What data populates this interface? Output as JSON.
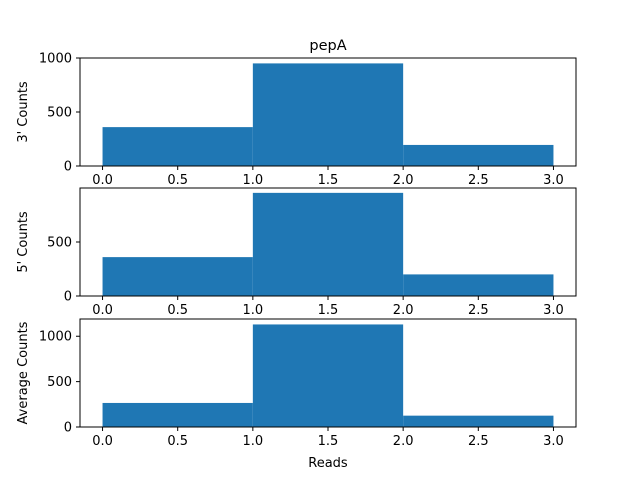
{
  "title": "pepA",
  "xlabel": "Reads",
  "colors": {
    "bar": "#1f77b4",
    "axes": "#000000",
    "background": "#ffffff"
  },
  "chart_data": [
    {
      "type": "bar",
      "title": "pepA",
      "ylabel": "3' Counts",
      "xlabel": "",
      "bins": [
        [
          0,
          1
        ],
        [
          1,
          2
        ],
        [
          2,
          3
        ]
      ],
      "values": [
        360,
        950,
        195
      ],
      "xlim": [
        -0.15,
        3.15
      ],
      "ylim": [
        0,
        1000
      ],
      "xticks": [
        0.0,
        0.5,
        1.0,
        1.5,
        2.0,
        2.5,
        3.0
      ],
      "xtick_labels": [
        "0.0",
        "0.5",
        "1.0",
        "1.5",
        "2.0",
        "2.5",
        "3.0"
      ],
      "yticks": [
        0,
        500,
        1000
      ],
      "ytick_labels": [
        "0",
        "500",
        "1000"
      ],
      "grid": false
    },
    {
      "type": "bar",
      "title": "",
      "ylabel": "5' Counts",
      "xlabel": "",
      "bins": [
        [
          0,
          1
        ],
        [
          1,
          2
        ],
        [
          2,
          3
        ]
      ],
      "values": [
        360,
        955,
        200
      ],
      "xlim": [
        -0.15,
        3.15
      ],
      "ylim": [
        0,
        1000
      ],
      "xticks": [
        0.0,
        0.5,
        1.0,
        1.5,
        2.0,
        2.5,
        3.0
      ],
      "xtick_labels": [
        "0.0",
        "0.5",
        "1.0",
        "1.5",
        "2.0",
        "2.5",
        "3.0"
      ],
      "yticks": [
        0,
        500
      ],
      "ytick_labels": [
        "0",
        "500"
      ],
      "grid": false
    },
    {
      "type": "bar",
      "title": "",
      "ylabel": "Average Counts",
      "xlabel": "Reads",
      "bins": [
        [
          0,
          1
        ],
        [
          1,
          2
        ],
        [
          2,
          3
        ]
      ],
      "values": [
        265,
        1130,
        125
      ],
      "xlim": [
        -0.15,
        3.15
      ],
      "ylim": [
        0,
        1190
      ],
      "xticks": [
        0.0,
        0.5,
        1.0,
        1.5,
        2.0,
        2.5,
        3.0
      ],
      "xtick_labels": [
        "0.0",
        "0.5",
        "1.0",
        "1.5",
        "2.0",
        "2.5",
        "3.0"
      ],
      "yticks": [
        0,
        500,
        1000
      ],
      "ytick_labels": [
        "0",
        "500",
        "1000"
      ],
      "grid": false
    }
  ]
}
